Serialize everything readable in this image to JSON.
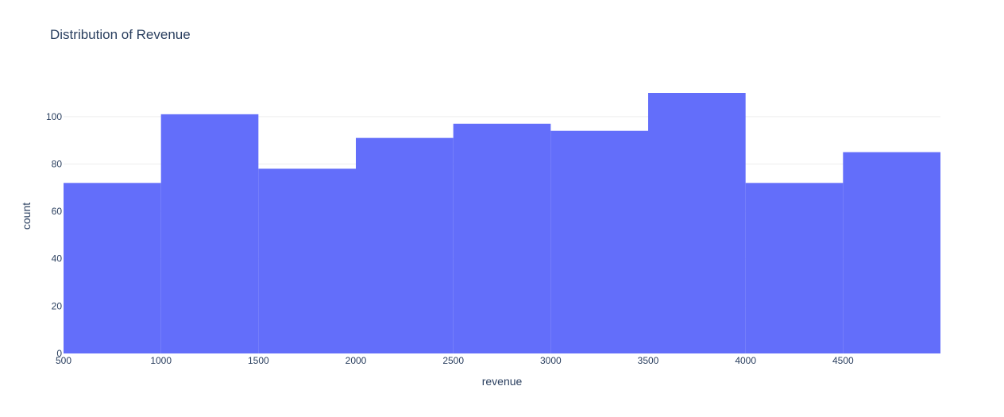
{
  "chart_data": {
    "type": "bar",
    "title": "Distribution of Revenue",
    "xlabel": "revenue",
    "ylabel": "count",
    "bins": [
      {
        "start": 500,
        "end": 1000,
        "count": 72
      },
      {
        "start": 1000,
        "end": 1500,
        "count": 101
      },
      {
        "start": 1500,
        "end": 2000,
        "count": 78
      },
      {
        "start": 2000,
        "end": 2500,
        "count": 91
      },
      {
        "start": 2500,
        "end": 3000,
        "count": 97
      },
      {
        "start": 3000,
        "end": 3500,
        "count": 94
      },
      {
        "start": 3500,
        "end": 4000,
        "count": 110
      },
      {
        "start": 4000,
        "end": 4500,
        "count": 72
      },
      {
        "start": 4500,
        "end": 5000,
        "count": 85
      }
    ],
    "xlim": [
      500,
      5000
    ],
    "ylim": [
      0,
      110
    ],
    "x_ticks": [
      "500",
      "1000",
      "1500",
      "2000",
      "2500",
      "3000",
      "3500",
      "4000",
      "4500"
    ],
    "y_ticks": [
      "0",
      "20",
      "40",
      "60",
      "80",
      "100"
    ],
    "bar_color": "#636efa",
    "grid": true
  }
}
